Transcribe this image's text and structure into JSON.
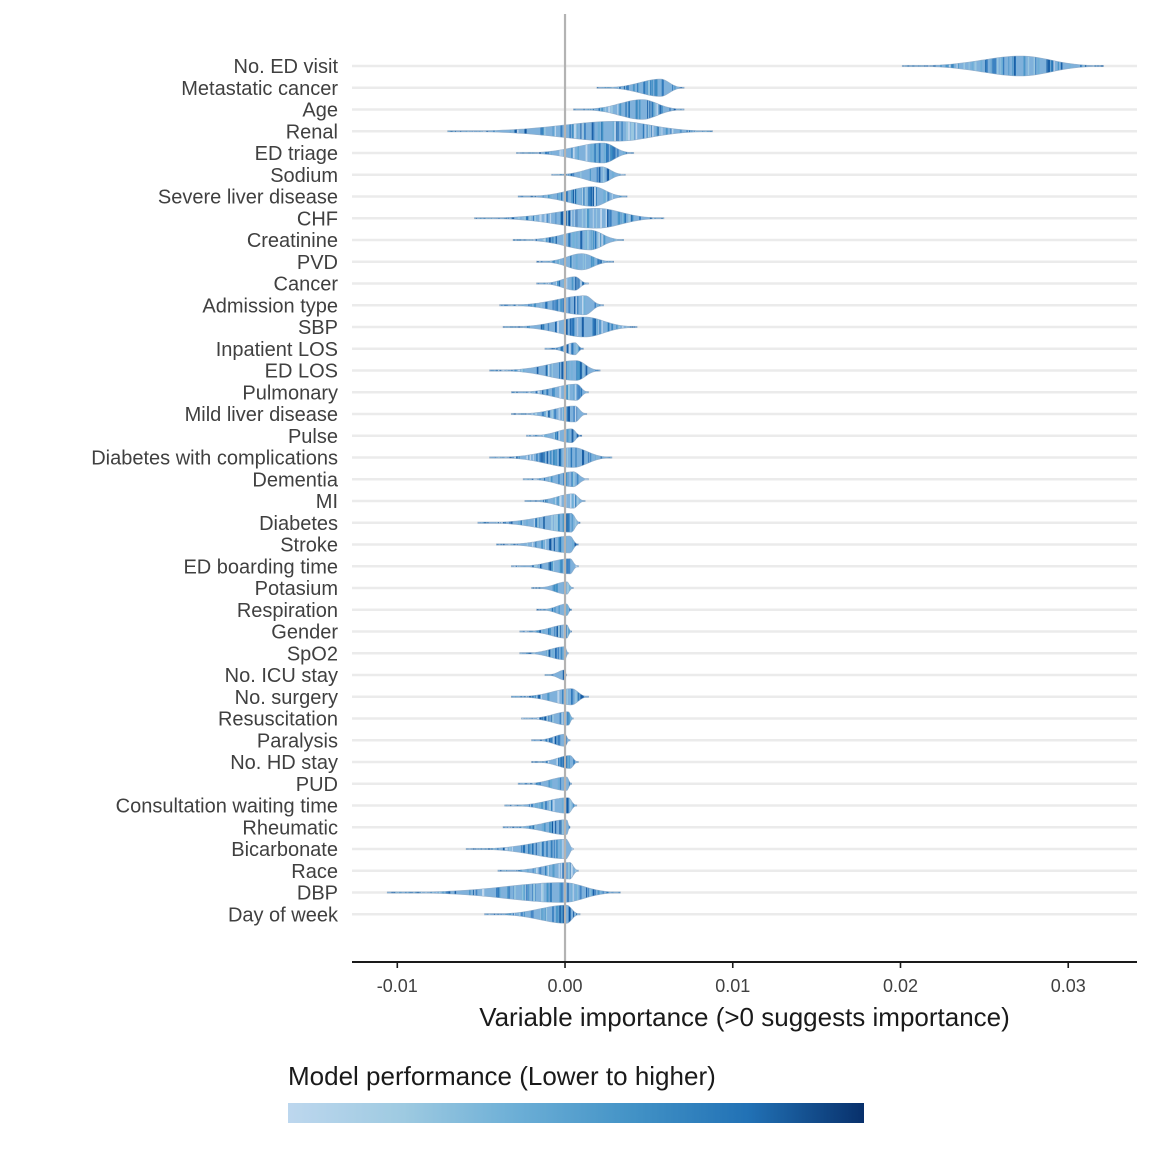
{
  "chart_data": {
    "type": "violin",
    "xlabel": "Variable importance (>0 suggests importance)",
    "xlim": [
      -0.0127,
      0.0341
    ],
    "xticks": [
      -0.01,
      0.0,
      0.01,
      0.02,
      0.03
    ],
    "xtick_labels": [
      "-0.01",
      "0.00",
      "0.01",
      "0.02",
      "0.03"
    ],
    "reference_line_x": 0,
    "grid": "horizontal",
    "legend": {
      "title": "Model performance (Lower to higher)",
      "position": "bottom",
      "colors": [
        "#bdd7ee",
        "#9ecae1",
        "#6baed6",
        "#4292c6",
        "#2171b5",
        "#08306b"
      ]
    },
    "variables": [
      {
        "name": "No. ED visit",
        "min": 0.0201,
        "center": 0.0272,
        "max": 0.0321
      },
      {
        "name": "Metastatic cancer",
        "min": 0.0019,
        "center": 0.0057,
        "max": 0.0071
      },
      {
        "name": "Age",
        "min": 0.0005,
        "center": 0.0046,
        "max": 0.0071
      },
      {
        "name": "Renal",
        "min": -0.007,
        "center": 0.0031,
        "max": 0.0088
      },
      {
        "name": "ED triage",
        "min": -0.0029,
        "center": 0.0023,
        "max": 0.0041
      },
      {
        "name": "Sodium",
        "min": -0.0008,
        "center": 0.0022,
        "max": 0.0036
      },
      {
        "name": "Severe liver disease",
        "min": -0.0028,
        "center": 0.0017,
        "max": 0.0037
      },
      {
        "name": "CHF",
        "min": -0.0054,
        "center": 0.0019,
        "max": 0.0059
      },
      {
        "name": "Creatinine",
        "min": -0.0031,
        "center": 0.0015,
        "max": 0.0035
      },
      {
        "name": "PVD",
        "min": -0.0017,
        "center": 0.001,
        "max": 0.0029
      },
      {
        "name": "Cancer",
        "min": -0.0017,
        "center": 0.0006,
        "max": 0.0014
      },
      {
        "name": "Admission type",
        "min": -0.0039,
        "center": 0.0012,
        "max": 0.0023
      },
      {
        "name": "SBP",
        "min": -0.0037,
        "center": 0.0012,
        "max": 0.0043
      },
      {
        "name": "Inpatient LOS",
        "min": -0.0012,
        "center": 0.0006,
        "max": 0.0011
      },
      {
        "name": "ED LOS",
        "min": -0.0045,
        "center": 0.0007,
        "max": 0.0021
      },
      {
        "name": "Pulmonary",
        "min": -0.0032,
        "center": 0.0007,
        "max": 0.0014
      },
      {
        "name": "Mild liver disease",
        "min": -0.0032,
        "center": 0.0006,
        "max": 0.0013
      },
      {
        "name": "Pulse",
        "min": -0.0023,
        "center": 0.0004,
        "max": 0.001
      },
      {
        "name": "Diabetes with complications",
        "min": -0.0045,
        "center": 0.0005,
        "max": 0.0028
      },
      {
        "name": "Dementia",
        "min": -0.0025,
        "center": 0.0005,
        "max": 0.0014
      },
      {
        "name": "MI",
        "min": -0.0024,
        "center": 0.0005,
        "max": 0.0012
      },
      {
        "name": "Diabetes",
        "min": -0.0052,
        "center": 0.0004,
        "max": 0.0009
      },
      {
        "name": "Stroke",
        "min": -0.0041,
        "center": 0.0003,
        "max": 0.0008
      },
      {
        "name": "ED boarding time",
        "min": -0.0032,
        "center": 0.0003,
        "max": 0.0008
      },
      {
        "name": "Potasium",
        "min": -0.002,
        "center": 0.0001,
        "max": 0.0005
      },
      {
        "name": "Respiration",
        "min": -0.0017,
        "center": 0.0001,
        "max": 0.0004
      },
      {
        "name": "Gender",
        "min": -0.0027,
        "center": 0.0001,
        "max": 0.0004
      },
      {
        "name": "SpO2",
        "min": -0.0027,
        "center": 0.0,
        "max": 0.0002
      },
      {
        "name": "No. ICU stay",
        "min": -0.0012,
        "center": 0.0,
        "max": 0.0001
      },
      {
        "name": "No. surgery",
        "min": -0.0032,
        "center": 0.0004,
        "max": 0.0014
      },
      {
        "name": "Resuscitation",
        "min": -0.0026,
        "center": 0.0002,
        "max": 0.0005
      },
      {
        "name": "Paralysis",
        "min": -0.002,
        "center": 0.0,
        "max": 0.0003
      },
      {
        "name": "No. HD stay",
        "min": -0.002,
        "center": 0.0003,
        "max": 0.0008
      },
      {
        "name": "PUD",
        "min": -0.0028,
        "center": 0.0001,
        "max": 0.0004
      },
      {
        "name": "Consultation waiting time",
        "min": -0.0036,
        "center": 0.0002,
        "max": 0.0007
      },
      {
        "name": "Rheumatic",
        "min": -0.0037,
        "center": 0.0001,
        "max": 0.0003
      },
      {
        "name": "Bicarbonate",
        "min": -0.0059,
        "center": 0.0001,
        "max": 0.0005
      },
      {
        "name": "Race",
        "min": -0.004,
        "center": 0.0003,
        "max": 0.0008
      },
      {
        "name": "DBP",
        "min": -0.0106,
        "center": -0.0001,
        "max": 0.0033
      },
      {
        "name": "Day of week",
        "min": -0.0048,
        "center": 0.0001,
        "max": 0.0009
      }
    ]
  }
}
